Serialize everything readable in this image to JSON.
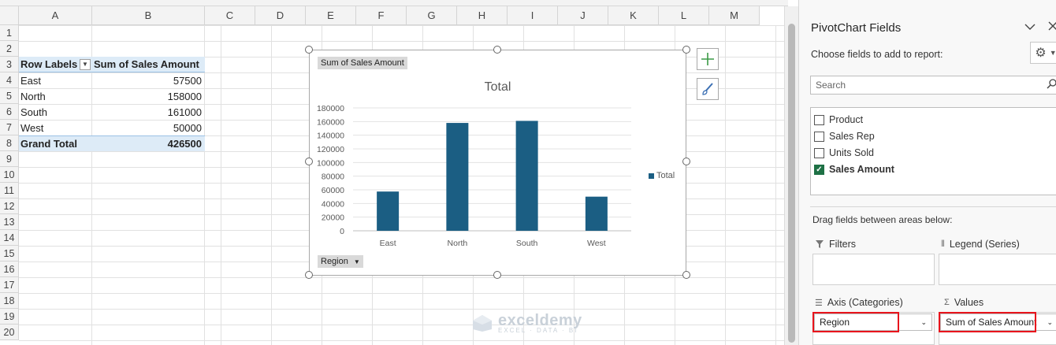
{
  "sheet": {
    "columns": [
      "A",
      "B",
      "C",
      "D",
      "E",
      "F",
      "G",
      "H",
      "I",
      "J",
      "K",
      "L",
      "M"
    ],
    "rows": [
      "1",
      "2",
      "3",
      "4",
      "5",
      "6",
      "7",
      "8",
      "9",
      "10",
      "11",
      "12",
      "13",
      "14",
      "15",
      "16",
      "17",
      "18",
      "19",
      "20"
    ]
  },
  "pivot": {
    "header": [
      "Row Labels",
      "Sum of Sales Amount"
    ],
    "filter_icon": "dropdown-arrow-icon",
    "rows": [
      {
        "label": "East",
        "value": "57500"
      },
      {
        "label": "North",
        "value": "158000"
      },
      {
        "label": "South",
        "value": "161000"
      },
      {
        "label": "West",
        "value": "50000"
      }
    ],
    "total": {
      "label": "Grand Total",
      "value": "426500"
    }
  },
  "chart_data": {
    "type": "bar",
    "title": "Total",
    "value_field_button": "Sum of Sales Amount",
    "axis_field_button": "Region",
    "categories": [
      "East",
      "North",
      "South",
      "West"
    ],
    "series": [
      {
        "name": "Total",
        "values": [
          57500,
          158000,
          161000,
          50000
        ],
        "color": "#1b5e83"
      }
    ],
    "yticks": [
      "0",
      "20000",
      "40000",
      "60000",
      "80000",
      "100000",
      "120000",
      "140000",
      "160000",
      "180000"
    ],
    "ylim": [
      0,
      180000
    ],
    "grid": true,
    "legend": "right"
  },
  "chart_side_buttons": [
    {
      "icon": "chart-elements-plus-icon"
    },
    {
      "icon": "chart-styles-brush-icon"
    }
  ],
  "watermark": {
    "name": "exceldemy",
    "sub": "EXCEL · DATA · BI"
  },
  "pane": {
    "title": "PivotChart Fields",
    "subtitle": "Choose fields to add to report:",
    "search_placeholder": "Search",
    "fields": [
      {
        "label": "Product",
        "checked": false
      },
      {
        "label": "Sales Rep",
        "checked": false
      },
      {
        "label": "Units Sold",
        "checked": false
      },
      {
        "label": "Sales Amount",
        "checked": true
      }
    ],
    "drag_label": "Drag fields between areas below:",
    "areas": {
      "filters": "Filters",
      "legend": "Legend (Series)",
      "axis": "Axis (Categories)",
      "values": "Values"
    },
    "axis_item": "Region",
    "values_item": "Sum of Sales Amount"
  },
  "colors": {
    "accent": "#1b5e83",
    "pivot_header": "#ddebf7",
    "highlight": "#e8141c",
    "check": "#1e7145"
  }
}
